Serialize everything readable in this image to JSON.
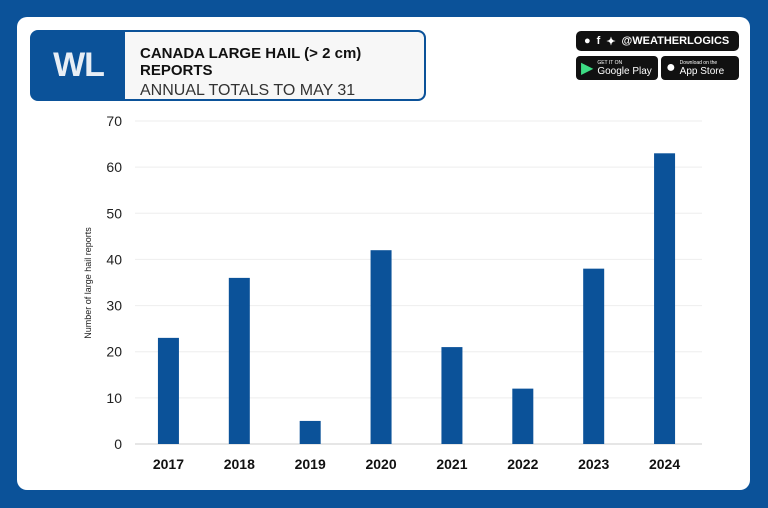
{
  "header": {
    "logo": "WL",
    "title": "CANADA LARGE HAIL (> 2 cm) REPORTS",
    "subtitle": "ANNUAL TOTALS TO MAY 31"
  },
  "social": {
    "handle": "@WEATHERLOGICS",
    "icons": [
      "reddit-icon",
      "facebook-icon",
      "twitter-icon"
    ],
    "google_play": {
      "small": "GET IT ON",
      "big": "Google Play"
    },
    "app_store": {
      "small": "Download on the",
      "big": "App Store"
    }
  },
  "colors": {
    "bar": "#0b5299",
    "background": "#0b5299"
  },
  "chart_data": {
    "type": "bar",
    "categories": [
      "2017",
      "2018",
      "2019",
      "2020",
      "2021",
      "2022",
      "2023",
      "2024"
    ],
    "values": [
      23,
      36,
      5,
      42,
      21,
      12,
      38,
      63
    ],
    "title": "CANADA LARGE HAIL (> 2 cm) REPORTS",
    "subtitle": "ANNUAL TOTALS TO MAY 31",
    "xlabel": "",
    "ylabel": "Number of large hail reports",
    "ylim": [
      0,
      70
    ],
    "yticks": [
      0,
      10,
      20,
      30,
      40,
      50,
      60,
      70
    ],
    "grid": true,
    "legend": "none"
  }
}
